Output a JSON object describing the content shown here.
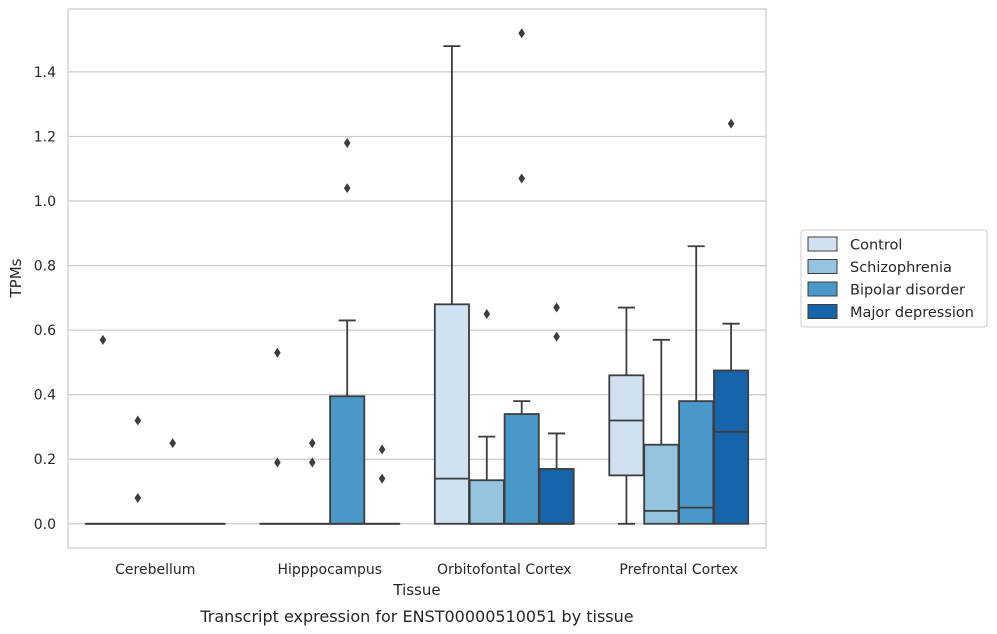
{
  "caption": "Transcript expression for ENST00000510051 by tissue",
  "chart_data": {
    "type": "box",
    "xlabel": "Tissue",
    "ylabel": "TPMs",
    "ylim": [
      -0.075,
      1.595
    ],
    "yticks": [
      0.0,
      0.2,
      0.4,
      0.6,
      0.8,
      1.0,
      1.2,
      1.4
    ],
    "ytick_labels": [
      "0.0",
      "0.2",
      "0.4",
      "0.6",
      "0.8",
      "1.0",
      "1.2",
      "1.4"
    ],
    "grid": true,
    "legend_placement": "right",
    "categories": [
      "Cerebellum",
      "Hipppocampus",
      "Orbitofontal Cortex",
      "Prefrontal Cortex"
    ],
    "series": [
      {
        "name": "Control",
        "color": "#d0e1f2",
        "boxes": [
          {
            "q1": 0,
            "median": 0,
            "q3": 0,
            "whislo": 0,
            "whishi": 0,
            "fliers": [
              0.57
            ]
          },
          {
            "q1": 0,
            "median": 0,
            "q3": 0,
            "whislo": 0,
            "whishi": 0,
            "fliers": [
              0.53,
              0.19
            ]
          },
          {
            "q1": 0,
            "median": 0.14,
            "q3": 0.68,
            "whislo": 0,
            "whishi": 1.48,
            "fliers": []
          },
          {
            "q1": 0.15,
            "median": 0.32,
            "q3": 0.46,
            "whislo": 0,
            "whishi": 0.67,
            "fliers": []
          }
        ]
      },
      {
        "name": "Schizophrenia",
        "color": "#94c4df",
        "boxes": [
          {
            "q1": 0,
            "median": 0,
            "q3": 0,
            "whislo": 0,
            "whishi": 0,
            "fliers": [
              0.32,
              0.08
            ]
          },
          {
            "q1": 0,
            "median": 0,
            "q3": 0,
            "whislo": 0,
            "whishi": 0,
            "fliers": [
              0.25,
              0.19
            ]
          },
          {
            "q1": 0,
            "median": 0,
            "q3": 0.135,
            "whislo": 0,
            "whishi": 0.27,
            "fliers": [
              0.65
            ]
          },
          {
            "q1": 0,
            "median": 0.04,
            "q3": 0.245,
            "whislo": 0,
            "whishi": 0.57,
            "fliers": []
          }
        ]
      },
      {
        "name": "Bipolar disorder",
        "color": "#4a98c9",
        "boxes": [
          {
            "q1": 0,
            "median": 0,
            "q3": 0,
            "whislo": 0,
            "whishi": 0,
            "fliers": [
              0.25
            ]
          },
          {
            "q1": 0,
            "median": 0,
            "q3": 0.395,
            "whislo": 0,
            "whishi": 0.63,
            "fliers": [
              1.18,
              1.04
            ]
          },
          {
            "q1": 0,
            "median": 0,
            "q3": 0.34,
            "whislo": 0,
            "whishi": 0.38,
            "fliers": [
              1.52,
              1.07
            ]
          },
          {
            "q1": 0,
            "median": 0.05,
            "q3": 0.38,
            "whislo": 0,
            "whishi": 0.86,
            "fliers": []
          }
        ]
      },
      {
        "name": "Major depression",
        "color": "#1764ab",
        "boxes": [
          {
            "q1": 0,
            "median": 0,
            "q3": 0,
            "whislo": 0,
            "whishi": 0,
            "fliers": []
          },
          {
            "q1": 0,
            "median": 0,
            "q3": 0,
            "whislo": 0,
            "whishi": 0,
            "fliers": [
              0.23,
              0.14
            ]
          },
          {
            "q1": 0,
            "median": 0,
            "q3": 0.17,
            "whislo": 0,
            "whishi": 0.28,
            "fliers": [
              0.67,
              0.58
            ]
          },
          {
            "q1": 0,
            "median": 0.285,
            "q3": 0.475,
            "whislo": 0,
            "whishi": 0.62,
            "fliers": [
              1.24
            ]
          }
        ]
      }
    ]
  }
}
